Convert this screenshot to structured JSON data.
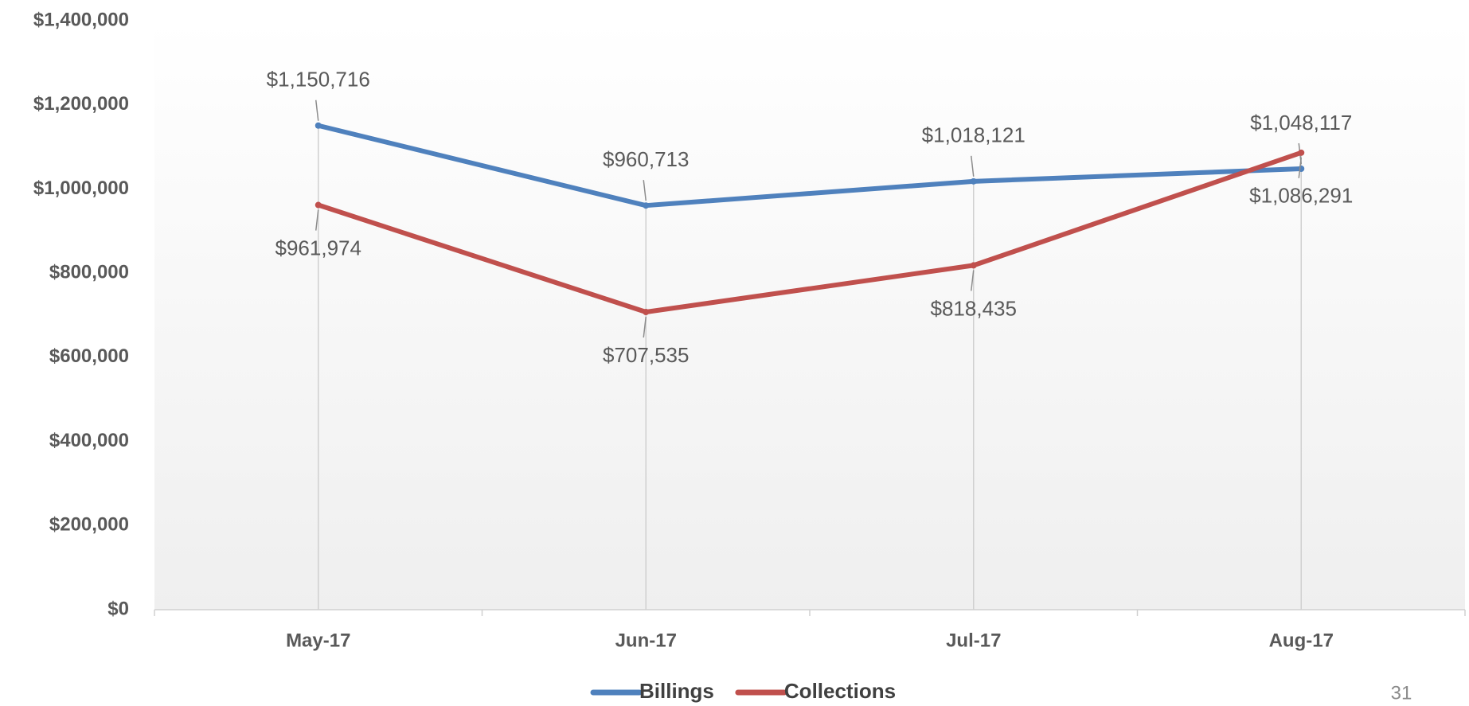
{
  "chart_data": {
    "type": "line",
    "categories": [
      "May-17",
      "Jun-17",
      "Jul-17",
      "Aug-17"
    ],
    "series": [
      {
        "name": "Billings",
        "color": "#4f81bd",
        "values": [
          1150716,
          960713,
          1018121,
          1048117
        ],
        "value_labels": [
          "$1,150,716",
          "$960,713",
          "$1,018,121",
          "$1,048,117"
        ]
      },
      {
        "name": "Collections",
        "color": "#c0504d",
        "values": [
          961974,
          707535,
          818435,
          1086291
        ],
        "value_labels": [
          "$961,974",
          "$707,535",
          "$818,435",
          "$1,086,291"
        ]
      }
    ],
    "ylim": [
      0,
      1400000
    ],
    "yticks": [
      {
        "value": 0,
        "label": "$0"
      },
      {
        "value": 200000,
        "label": "$200,000"
      },
      {
        "value": 400000,
        "label": "$400,000"
      },
      {
        "value": 600000,
        "label": "$600,000"
      },
      {
        "value": 800000,
        "label": "$800,000"
      },
      {
        "value": 1000000,
        "label": "$1,000,000"
      },
      {
        "value": 1200000,
        "label": "$1,200,000"
      },
      {
        "value": 1400000,
        "label": "$1,400,000"
      }
    ],
    "legend": "bottom",
    "drop_lines": true
  },
  "page_number": "31"
}
